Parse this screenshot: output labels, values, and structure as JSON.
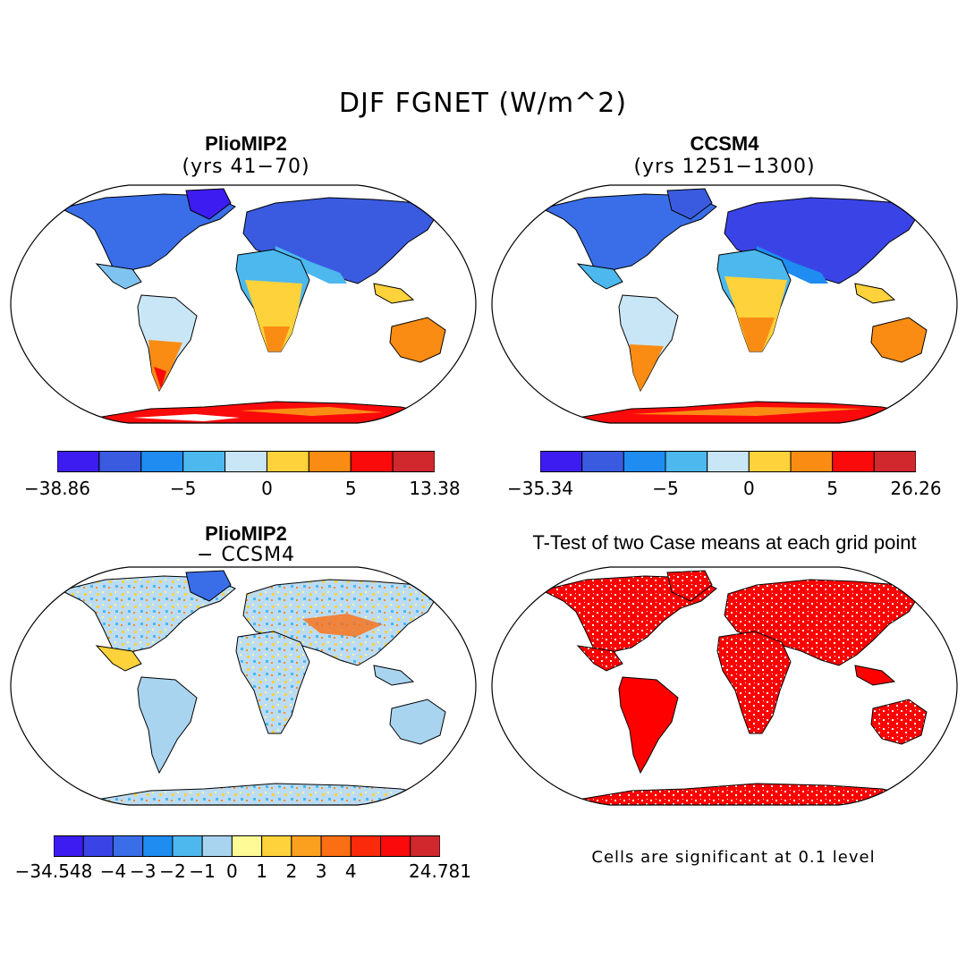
{
  "title": "DJF FGNET (W/m^2)",
  "panels": {
    "p1": {
      "title": "PlioMIP2",
      "subtitle": "(yrs 41−70)"
    },
    "p2": {
      "title": "CCSM4",
      "subtitle": "(yrs 1251−1300)"
    },
    "p3": {
      "title": "PlioMIP2",
      "subtitle": "− CCSM4"
    },
    "p4": {
      "title": "T-Test of two Case means at each grid point"
    }
  },
  "colorbars": {
    "cb1": {
      "colors": [
        "#3c1cf0",
        "#3a5be0",
        "#1e8cf0",
        "#4cb8ee",
        "#c8e6f6",
        "#fdd23a",
        "#fa8c14",
        "#fa0a0a",
        "#d0282c"
      ],
      "ticks": [
        {
          "pos": 0,
          "label": "−38.86"
        },
        {
          "pos": 3,
          "label": "−5"
        },
        {
          "pos": 5,
          "label": "0"
        },
        {
          "pos": 7,
          "label": "5"
        },
        {
          "pos": 9,
          "label": "13.38"
        }
      ]
    },
    "cb2": {
      "colors": [
        "#3c1cf0",
        "#3a5be0",
        "#1e8cf0",
        "#4cb8ee",
        "#c8e6f6",
        "#fdd23a",
        "#fa8c14",
        "#fa0a0a",
        "#d0282c"
      ],
      "ticks": [
        {
          "pos": 0,
          "label": "−35.34"
        },
        {
          "pos": 3,
          "label": "−5"
        },
        {
          "pos": 5,
          "label": "0"
        },
        {
          "pos": 7,
          "label": "5"
        },
        {
          "pos": 9,
          "label": "26.26"
        }
      ]
    },
    "cb3": {
      "colors": [
        "#3c1cf0",
        "#3a44e6",
        "#3a6ee8",
        "#1e8cf0",
        "#4cb8ee",
        "#a8d4f0",
        "#fefa96",
        "#fdd23a",
        "#faa01e",
        "#fa6e14",
        "#fa2a0a",
        "#fa0a0a",
        "#d0282c"
      ],
      "ticks": [
        {
          "pos": 0,
          "label": "−34.548"
        },
        {
          "pos": 2,
          "label": "−4"
        },
        {
          "pos": 3,
          "label": "−3"
        },
        {
          "pos": 4,
          "label": "−2"
        },
        {
          "pos": 5,
          "label": "−1"
        },
        {
          "pos": 6,
          "label": "0"
        },
        {
          "pos": 7,
          "label": "1"
        },
        {
          "pos": 8,
          "label": "2"
        },
        {
          "pos": 9,
          "label": "3"
        },
        {
          "pos": 10,
          "label": "4"
        },
        {
          "pos": 13,
          "label": "24.781"
        }
      ]
    }
  },
  "footnote": "Cells are significant at 0.1 level"
}
